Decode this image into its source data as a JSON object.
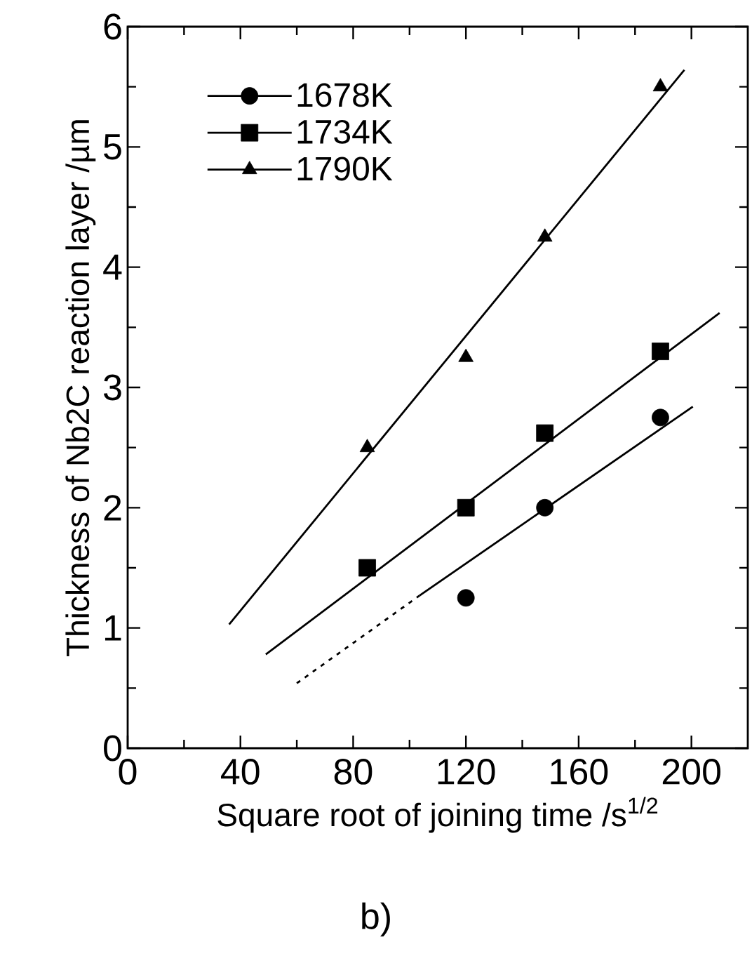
{
  "chart_data": {
    "type": "scatter",
    "xlabel": "Square  root of joining time /s$^{1/2}$",
    "ylabel": "Thickness of Nb2C reaction layer /µm",
    "xlim": [
      0,
      220
    ],
    "xticks": [
      0,
      40,
      80,
      120,
      160,
      200
    ],
    "ylim": [
      0,
      6
    ],
    "yticks": [
      0,
      1,
      2,
      3,
      4,
      5,
      6
    ],
    "grid": false,
    "legend": "top left",
    "series": [
      {
        "name": "1678K",
        "color": "#000000",
        "marker": "circle",
        "x": [
          120,
          148,
          189
        ],
        "values": [
          1.25,
          2.0,
          2.75
        ]
      },
      {
        "name": "1734K",
        "color": "#000000",
        "marker": "square",
        "x": [
          85,
          120,
          148,
          189
        ],
        "values": [
          1.5,
          2.0,
          2.62,
          3.3
        ]
      },
      {
        "name": "1790K",
        "color": "#000000",
        "marker": "triangle",
        "x": [
          85,
          120,
          148,
          189
        ],
        "values": [
          2.5,
          3.25,
          4.25,
          5.5
        ]
      },
      {
        "type": "line",
        "color": "#000000",
        "marker": "none",
        "line_style": "dotted",
        "x": [
          60,
          103.6
        ],
        "values": [
          0.54,
          1.27
        ]
      },
      {
        "type": "line",
        "color": "#000000",
        "marker": "none",
        "line_style": "solid",
        "x": [
          103.6,
          200.5
        ],
        "values": [
          1.27,
          2.84
        ]
      },
      {
        "type": "line",
        "color": "#000000",
        "marker": "none",
        "line_style": "solid",
        "x": [
          49,
          210
        ],
        "values": [
          0.78,
          3.62
        ]
      },
      {
        "type": "line",
        "color": "#000000",
        "marker": "none",
        "line_style": "solid",
        "x": [
          36,
          197.5
        ],
        "values": [
          1.03,
          5.64
        ]
      }
    ],
    "annotations": [
      "b)"
    ]
  }
}
